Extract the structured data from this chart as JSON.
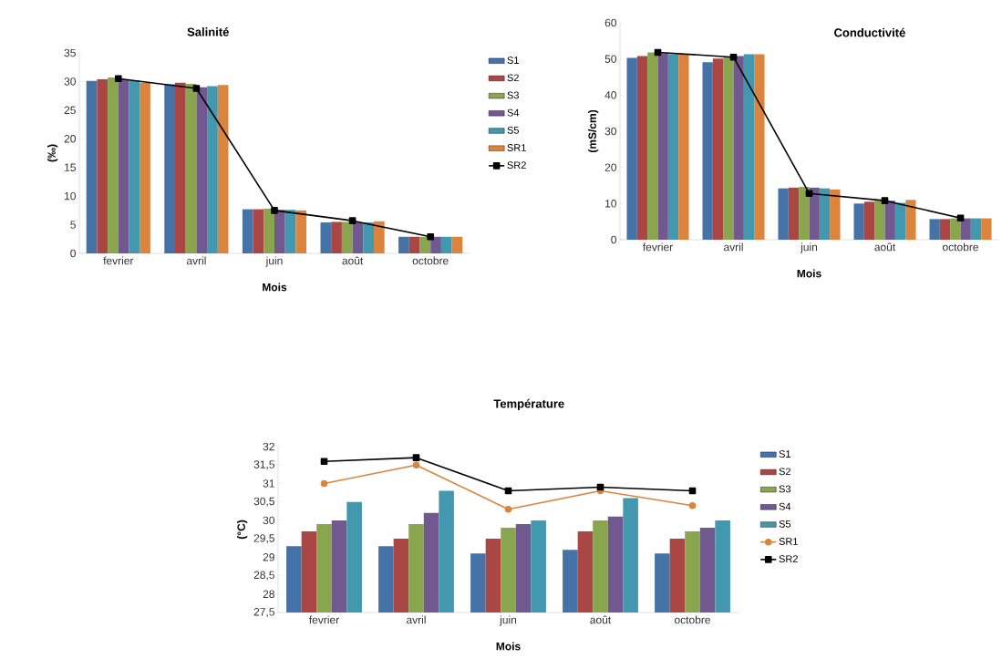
{
  "chart_data": [
    {
      "type": "bar",
      "title": "Salinité",
      "xlabel": "Mois",
      "ylabel": "(‰)",
      "categories": [
        "fevrier",
        "avril",
        "juin",
        "août",
        "octobre"
      ],
      "ylim": [
        0,
        35
      ],
      "yticks": [
        0,
        5,
        10,
        15,
        20,
        25,
        30,
        35
      ],
      "legend": "right",
      "series": [
        {
          "name": "S1",
          "color": "#4572a7",
          "values": [
            30.1,
            29.5,
            7.7,
            5.4,
            2.9
          ]
        },
        {
          "name": "S2",
          "color": "#aa4643",
          "values": [
            30.4,
            29.8,
            7.7,
            5.5,
            2.9
          ]
        },
        {
          "name": "S3",
          "color": "#89a54e",
          "values": [
            30.7,
            29.6,
            7.8,
            5.5,
            2.9
          ]
        },
        {
          "name": "S4",
          "color": "#71588f",
          "values": [
            30.4,
            29.0,
            7.6,
            5.4,
            2.9
          ]
        },
        {
          "name": "S5",
          "color": "#4198af",
          "values": [
            30.2,
            29.2,
            7.6,
            5.4,
            2.9
          ]
        },
        {
          "name": "SR1",
          "color": "#db843d",
          "values": [
            29.8,
            29.4,
            7.5,
            5.6,
            2.9
          ]
        },
        {
          "name": "SR2",
          "type": "line",
          "marker": "square",
          "color": "#000000",
          "values": [
            30.5,
            28.8,
            7.5,
            5.7,
            2.9
          ]
        }
      ]
    },
    {
      "type": "bar",
      "title": "Conductivité",
      "xlabel": "Mois",
      "ylabel": "(mS/cm)",
      "categories": [
        "fevrier",
        "avril",
        "juin",
        "août",
        "octobre"
      ],
      "ylim": [
        0,
        60
      ],
      "yticks": [
        0,
        10,
        20,
        30,
        40,
        50,
        60
      ],
      "series": [
        {
          "color": "#4572a7",
          "values": [
            50.3,
            49.1,
            14.2,
            10.0,
            5.7
          ]
        },
        {
          "color": "#aa4643",
          "values": [
            50.8,
            50.1,
            14.4,
            10.5,
            5.7
          ]
        },
        {
          "color": "#89a54e",
          "values": [
            51.8,
            50.5,
            14.6,
            10.8,
            5.9
          ]
        },
        {
          "color": "#71588f",
          "values": [
            51.5,
            50.8,
            14.4,
            10.8,
            5.9
          ]
        },
        {
          "color": "#4198af",
          "values": [
            51.3,
            51.3,
            14.2,
            10.2,
            5.9
          ]
        },
        {
          "color": "#db843d",
          "values": [
            51.3,
            51.3,
            13.9,
            11.0,
            5.9
          ]
        },
        {
          "type": "line",
          "marker": "square",
          "color": "#000000",
          "values": [
            51.8,
            50.5,
            12.8,
            10.8,
            6.0
          ]
        }
      ]
    },
    {
      "type": "bar",
      "title": "Température",
      "xlabel": "Mois",
      "ylabel": "(°C)",
      "categories": [
        "fevrier",
        "avril",
        "juin",
        "août",
        "octobre"
      ],
      "ylim": [
        27.5,
        32
      ],
      "yticks": [
        {
          "value": 27.5,
          "label": "27,5"
        },
        28,
        {
          "value": 28.5,
          "label": "28,5"
        },
        29,
        {
          "value": 29.5,
          "label": "29,5"
        },
        30,
        {
          "value": 30.5,
          "label": "30,5"
        },
        31,
        {
          "value": 31.5,
          "label": "31,5"
        },
        32
      ],
      "legend": "right",
      "series": [
        {
          "name": "S1",
          "color": "#4572a7",
          "values": [
            29.3,
            29.3,
            29.1,
            29.2,
            29.1
          ]
        },
        {
          "name": "S2",
          "color": "#aa4643",
          "values": [
            29.7,
            29.5,
            29.5,
            29.7,
            29.5
          ]
        },
        {
          "name": "S3",
          "color": "#89a54e",
          "values": [
            29.9,
            29.9,
            29.8,
            30.0,
            29.7
          ]
        },
        {
          "name": "S4",
          "color": "#71588f",
          "values": [
            30.0,
            30.2,
            29.9,
            30.1,
            29.8
          ]
        },
        {
          "name": "S5",
          "color": "#4198af",
          "values": [
            30.5,
            30.8,
            30.0,
            30.6,
            30.0
          ]
        },
        {
          "name": "SR1",
          "type": "line",
          "marker": "circle",
          "color": "#db843d",
          "values": [
            31.0,
            31.5,
            30.3,
            30.8,
            30.4
          ]
        },
        {
          "name": "SR2",
          "type": "line",
          "marker": "square",
          "color": "#000000",
          "values": [
            31.6,
            31.7,
            30.8,
            30.9,
            30.8
          ]
        }
      ]
    }
  ]
}
